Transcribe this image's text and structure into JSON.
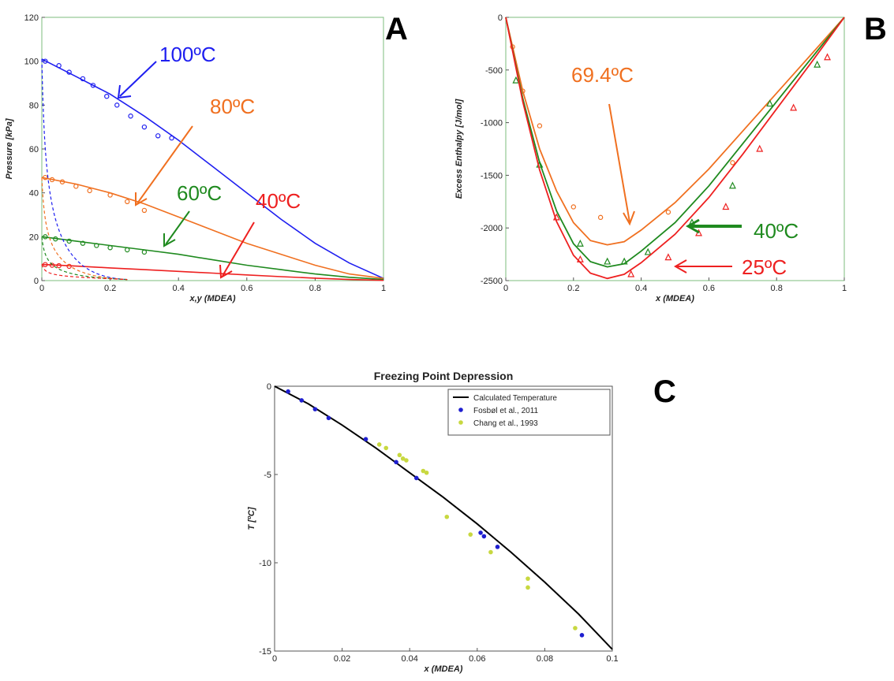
{
  "chart_data": [
    {
      "panel": "A",
      "type": "line",
      "xlabel": "x,y (MDEA)",
      "ylabel": "Pressure [kPa]",
      "xlim": [
        0,
        1
      ],
      "ylim": [
        0,
        120
      ],
      "xticks": [
        "0",
        "0.2",
        "0.4",
        "0.6",
        "0.8",
        "1"
      ],
      "yticks": [
        "0",
        "20",
        "40",
        "60",
        "80",
        "100",
        "120"
      ],
      "series": [
        {
          "name": "100ºC",
          "color": "#1f1ff0",
          "x": [
            0,
            0.1,
            0.2,
            0.3,
            0.4,
            0.5,
            0.6,
            0.7,
            0.8,
            0.9,
            1.0
          ],
          "y": [
            101,
            93,
            85,
            75,
            64,
            52,
            40,
            28,
            17,
            8,
            1
          ],
          "points_x": [
            0.01,
            0.05,
            0.08,
            0.12,
            0.15,
            0.19,
            0.22,
            0.26,
            0.3,
            0.34,
            0.38
          ],
          "points_y": [
            100,
            98,
            95,
            92,
            89,
            84,
            80,
            75,
            70,
            66,
            65
          ]
        },
        {
          "name": "80ºC",
          "color": "#f07020",
          "x": [
            0,
            0.1,
            0.2,
            0.3,
            0.4,
            0.5,
            0.6,
            0.7,
            0.8,
            0.9,
            1.0
          ],
          "y": [
            47,
            44,
            40,
            35,
            29,
            23,
            17,
            12,
            7,
            3,
            1
          ],
          "points_x": [
            0.01,
            0.03,
            0.06,
            0.1,
            0.14,
            0.2,
            0.25,
            0.3
          ],
          "points_y": [
            47,
            46,
            45,
            43,
            41,
            39,
            36,
            32
          ]
        },
        {
          "name": "60ºC",
          "color": "#1f8a1f",
          "x": [
            0,
            0.1,
            0.2,
            0.3,
            0.4,
            0.5,
            0.6,
            0.7,
            0.8,
            0.9,
            1.0
          ],
          "y": [
            20,
            18,
            16,
            14,
            12,
            9.5,
            7,
            5,
            3,
            1.5,
            0.5
          ],
          "points_x": [
            0.01,
            0.04,
            0.08,
            0.12,
            0.16,
            0.2,
            0.25,
            0.3
          ],
          "points_y": [
            20,
            19,
            18,
            17,
            16,
            15,
            14,
            13
          ]
        },
        {
          "name": "40ºC",
          "color": "#ee2020",
          "x": [
            0,
            0.1,
            0.2,
            0.3,
            0.4,
            0.5,
            0.6,
            0.7,
            0.8,
            0.9,
            1.0
          ],
          "y": [
            7.4,
            6.6,
            5.8,
            5,
            4.2,
            3.4,
            2.6,
            1.8,
            1.1,
            0.5,
            0.1
          ],
          "points_x": [
            0.01,
            0.03,
            0.05,
            0.08
          ],
          "points_y": [
            7.3,
            7,
            6.8,
            6.5
          ]
        }
      ]
    },
    {
      "panel": "B",
      "type": "line",
      "xlabel": "x (MDEA)",
      "ylabel": "Excess Enthalpy [J/mol]",
      "xlim": [
        0,
        1
      ],
      "ylim": [
        -2500,
        0
      ],
      "xticks": [
        "0",
        "0.2",
        "0.4",
        "0.6",
        "0.8",
        "1"
      ],
      "yticks": [
        "0",
        "-500",
        "-1000",
        "-1500",
        "-2000",
        "-2500"
      ],
      "series": [
        {
          "name": "69.4ºC",
          "color": "#f07020",
          "x": [
            0,
            0.05,
            0.1,
            0.15,
            0.2,
            0.25,
            0.3,
            0.35,
            0.4,
            0.5,
            0.6,
            0.7,
            0.8,
            0.9,
            1.0
          ],
          "y": [
            0,
            -700,
            -1250,
            -1650,
            -1950,
            -2120,
            -2160,
            -2130,
            -2020,
            -1760,
            -1440,
            -1080,
            -720,
            -360,
            0
          ],
          "points_x": [
            0.02,
            0.05,
            0.1,
            0.2,
            0.28,
            0.48,
            0.67
          ],
          "points_y": [
            -280,
            -700,
            -1030,
            -1800,
            -1900,
            -1850,
            -1380
          ]
        },
        {
          "name": "40ºC",
          "color": "#1f8a1f",
          "x": [
            0,
            0.05,
            0.1,
            0.15,
            0.2,
            0.25,
            0.3,
            0.35,
            0.4,
            0.5,
            0.6,
            0.7,
            0.8,
            0.9,
            1.0
          ],
          "y": [
            0,
            -770,
            -1380,
            -1840,
            -2150,
            -2320,
            -2370,
            -2340,
            -2220,
            -1950,
            -1600,
            -1200,
            -800,
            -400,
            0
          ],
          "points_x": [
            0.03,
            0.1,
            0.22,
            0.3,
            0.35,
            0.42,
            0.55,
            0.67,
            0.78,
            0.92
          ],
          "points_y": [
            -600,
            -1400,
            -2150,
            -2320,
            -2320,
            -2230,
            -1950,
            -1600,
            -820,
            -450
          ]
        },
        {
          "name": "25ºC",
          "color": "#ee2020",
          "x": [
            0,
            0.05,
            0.1,
            0.15,
            0.2,
            0.25,
            0.3,
            0.35,
            0.4,
            0.5,
            0.6,
            0.7,
            0.8,
            0.9,
            1.0
          ],
          "y": [
            0,
            -800,
            -1450,
            -1940,
            -2260,
            -2430,
            -2480,
            -2440,
            -2330,
            -2060,
            -1710,
            -1300,
            -870,
            -440,
            0
          ],
          "points_x": [
            0.15,
            0.22,
            0.37,
            0.48,
            0.57,
            0.65,
            0.75,
            0.85,
            0.95
          ],
          "points_y": [
            -1900,
            -2300,
            -2440,
            -2280,
            -2050,
            -1800,
            -1250,
            -860,
            -380
          ]
        }
      ]
    },
    {
      "panel": "C",
      "type": "scatter",
      "title": "Freezing Point Depression",
      "xlabel": "x (MDEA)",
      "ylabel": "T [ºC]",
      "xlim": [
        0,
        0.1
      ],
      "ylim": [
        -15,
        0
      ],
      "xticks": [
        "0",
        "0.02",
        "0.04",
        "0.06",
        "0.08",
        "0.1"
      ],
      "yticks": [
        "0",
        "-5",
        "-10",
        "-15"
      ],
      "legend": "top-right",
      "series": [
        {
          "name": "Calculated Temperature",
          "color": "#000000",
          "kind": "line",
          "x": [
            0,
            0.01,
            0.02,
            0.03,
            0.04,
            0.05,
            0.06,
            0.07,
            0.08,
            0.09,
            0.1
          ],
          "y": [
            0,
            -1.0,
            -2.2,
            -3.5,
            -4.9,
            -6.3,
            -7.8,
            -9.4,
            -11.1,
            -12.9,
            -14.9
          ]
        },
        {
          "name": "Fosbøl et al., 2011",
          "color": "#1f1fd0",
          "kind": "points",
          "x": [
            0.004,
            0.008,
            0.012,
            0.016,
            0.027,
            0.036,
            0.042,
            0.061,
            0.062,
            0.066,
            0.091
          ],
          "y": [
            -0.3,
            -0.8,
            -1.3,
            -1.8,
            -3.0,
            -4.3,
            -5.2,
            -8.3,
            -8.5,
            -9.1,
            -14.1
          ]
        },
        {
          "name": "Chang et al., 1993",
          "color": "#c8d840",
          "kind": "points",
          "x": [
            0.031,
            0.033,
            0.037,
            0.038,
            0.039,
            0.044,
            0.045,
            0.051,
            0.058,
            0.064,
            0.075,
            0.075,
            0.089
          ],
          "y": [
            -3.3,
            -3.5,
            -3.9,
            -4.1,
            -4.2,
            -4.8,
            -4.9,
            -7.4,
            -8.4,
            -9.4,
            -10.9,
            -11.4,
            -13.7
          ]
        }
      ]
    }
  ],
  "panel_labels": {
    "a": "A",
    "b": "B",
    "c": "C"
  },
  "annotations": {
    "a_100": "100ºC",
    "a_80": "80ºC",
    "a_60": "60ºC",
    "a_40": "40ºC",
    "b_694": "69.4ºC",
    "b_40": "40ºC",
    "b_25": "25ºC"
  }
}
